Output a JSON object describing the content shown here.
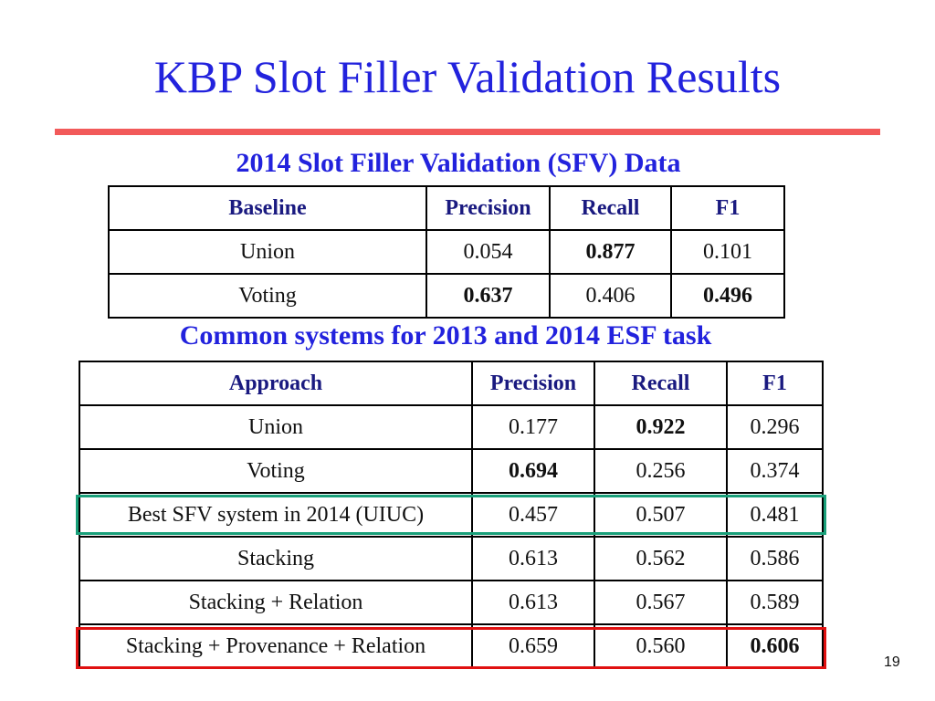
{
  "slide": {
    "title": "KBP Slot Filler Validation Results",
    "page_number": "19"
  },
  "colors": {
    "title": "#2222dd",
    "rule": "#f25a5a",
    "highlight_green": "#19a07a",
    "highlight_red": "#e01010"
  },
  "table1": {
    "caption": "2014 Slot Filler Validation (SFV) Data",
    "headers": [
      "Baseline",
      "Precision",
      "Recall",
      "F1"
    ],
    "rows": [
      [
        "Union",
        "0.054",
        "0.877",
        "0.101"
      ],
      [
        "Voting",
        "0.637",
        "0.406",
        "0.496"
      ]
    ]
  },
  "table2": {
    "caption": "Common systems for 2013 and 2014 ESF task",
    "headers": [
      "Approach",
      "Precision",
      "Recall",
      "F1"
    ],
    "rows": [
      [
        "Union",
        "0.177",
        "0.922",
        "0.296"
      ],
      [
        "Voting",
        "0.694",
        "0.256",
        "0.374"
      ],
      [
        "Best SFV system in 2014 (UIUC)",
        "0.457",
        "0.507",
        "0.481"
      ],
      [
        "Stacking",
        "0.613",
        "0.562",
        "0.586"
      ],
      [
        "Stacking + Relation",
        "0.613",
        "0.567",
        "0.589"
      ],
      [
        "Stacking + Provenance + Relation",
        "0.659",
        "0.560",
        "0.606"
      ]
    ]
  }
}
